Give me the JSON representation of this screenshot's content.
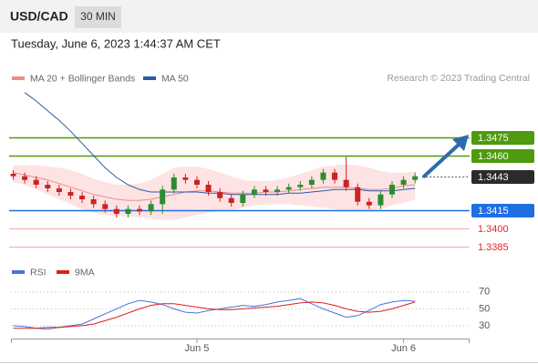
{
  "chart_data": {
    "type": "candlestick",
    "title": "USD/CAD",
    "timeframe": "30 MIN",
    "timestamp": "Tuesday, June 6, 2023 1:44:37 AM CET",
    "credit": "Research © 2023 Trading Central",
    "up_color": "#2e8b2e",
    "down_color": "#cc2222",
    "open": [
      1.3445,
      1.3443,
      1.344,
      1.3436,
      1.3433,
      1.343,
      1.3427,
      1.3424,
      1.342,
      1.3416,
      1.3412,
      1.3416,
      1.3414,
      1.342,
      1.3432,
      1.3442,
      1.344,
      1.3436,
      1.343,
      1.3425,
      1.3421,
      1.3428,
      1.3432,
      1.343,
      1.3432,
      1.3434,
      1.3436,
      1.344,
      1.3446,
      1.344,
      1.3434,
      1.3422,
      1.3419,
      1.3428,
      1.3436,
      1.344
    ],
    "high": [
      1.3448,
      1.3446,
      1.3443,
      1.3439,
      1.3436,
      1.3433,
      1.343,
      1.3427,
      1.3423,
      1.3419,
      1.3419,
      1.3419,
      1.3423,
      1.3435,
      1.3445,
      1.3445,
      1.3443,
      1.3439,
      1.3433,
      1.3428,
      1.3431,
      1.3435,
      1.3435,
      1.3435,
      1.3437,
      1.3439,
      1.3443,
      1.3449,
      1.3449,
      1.3459,
      1.3437,
      1.3425,
      1.3431,
      1.3439,
      1.3443,
      1.3446
    ],
    "low": [
      1.344,
      1.3437,
      1.3433,
      1.343,
      1.3427,
      1.3424,
      1.3421,
      1.3417,
      1.3413,
      1.3409,
      1.3409,
      1.3411,
      1.3411,
      1.3412,
      1.3429,
      1.3437,
      1.3433,
      1.3427,
      1.3422,
      1.3418,
      1.3418,
      1.3425,
      1.3427,
      1.3427,
      1.3429,
      1.3431,
      1.3433,
      1.3437,
      1.3437,
      1.3431,
      1.3419,
      1.3416,
      1.3416,
      1.3425,
      1.3433,
      1.3437
    ],
    "close": [
      1.3443,
      1.344,
      1.3436,
      1.3433,
      1.343,
      1.3427,
      1.3424,
      1.342,
      1.3416,
      1.3412,
      1.3416,
      1.3414,
      1.342,
      1.3432,
      1.3442,
      1.344,
      1.3436,
      1.343,
      1.3425,
      1.3421,
      1.3428,
      1.3432,
      1.343,
      1.3432,
      1.3434,
      1.3436,
      1.344,
      1.3446,
      1.344,
      1.3434,
      1.3422,
      1.3419,
      1.3428,
      1.3436,
      1.344,
      1.3443
    ],
    "overlays": [
      {
        "name": "MA 20 + Bollinger Bands",
        "color": "#f08a8a",
        "band_color": "#fde3e3",
        "values": [
          1.3446,
          1.3444,
          1.3442,
          1.344,
          1.3437,
          1.3434,
          1.3431,
          1.3428,
          1.3426,
          1.3424,
          1.3423,
          1.3423,
          1.3424,
          1.3426,
          1.3428,
          1.343,
          1.3431,
          1.3431,
          1.343,
          1.3429,
          1.3429,
          1.3429,
          1.343,
          1.343,
          1.3431,
          1.3432,
          1.3433,
          1.3434,
          1.3434,
          1.3434,
          1.3433,
          1.3432,
          1.3432,
          1.3433,
          1.3435,
          1.3436
        ],
        "upper": [
          1.3452,
          1.3452,
          1.3452,
          1.3451,
          1.345,
          1.3448,
          1.3445,
          1.3441,
          1.3438,
          1.3436,
          1.3436,
          1.3437,
          1.344,
          1.3445,
          1.345,
          1.3451,
          1.3451,
          1.3449,
          1.3446,
          1.3443,
          1.344,
          1.3439,
          1.3439,
          1.344,
          1.3442,
          1.3445,
          1.3448,
          1.3451,
          1.3452,
          1.3453,
          1.3452,
          1.345,
          1.3447,
          1.3446,
          1.3446,
          1.3447
        ],
        "lower": [
          1.3438,
          1.3436,
          1.3432,
          1.3428,
          1.3424,
          1.342,
          1.3416,
          1.3413,
          1.3411,
          1.341,
          1.341,
          1.3409,
          1.3408,
          1.3407,
          1.3407,
          1.3409,
          1.3411,
          1.3413,
          1.3414,
          1.3415,
          1.3417,
          1.3419,
          1.342,
          1.342,
          1.342,
          1.3419,
          1.3418,
          1.3417,
          1.3416,
          1.3415,
          1.3414,
          1.3414,
          1.3416,
          1.3419,
          1.3421,
          1.3424
        ]
      },
      {
        "name": "MA 50",
        "color": "#2d5aa8",
        "values": [
          null,
          1.3512,
          1.3505,
          1.3497,
          1.3489,
          1.348,
          1.347,
          1.346,
          1.345,
          1.3442,
          1.3436,
          1.3432,
          1.343,
          1.343,
          1.343,
          1.343,
          1.343,
          1.3429,
          1.3429,
          1.3428,
          1.3428,
          1.3428,
          1.3428,
          1.3428,
          1.3429,
          1.3429,
          1.343,
          1.3431,
          1.3432,
          1.3432,
          1.3432,
          1.3431,
          1.3431,
          1.3431,
          1.3432,
          1.3433
        ]
      }
    ],
    "levels": [
      {
        "value": 1.3475,
        "label": "1.3475",
        "color": "#4f9a0e",
        "style": "box"
      },
      {
        "value": 1.346,
        "label": "1.3460",
        "color": "#4f9a0e",
        "style": "box"
      },
      {
        "value": 1.3443,
        "label": "1.3443",
        "color": "#2b2b2b",
        "style": "current"
      },
      {
        "value": 1.3415,
        "label": "1.3415",
        "color": "#1f6fe0",
        "style": "box"
      },
      {
        "value": 1.34,
        "label": "1.3400",
        "color": "#e02828",
        "style": "text"
      },
      {
        "value": 1.3385,
        "label": "1.3385",
        "color": "#e02828",
        "style": "text"
      }
    ],
    "ylim": [
      1.33745,
      1.3517
    ],
    "xlim": [
      -0.2,
      39.75
    ],
    "xticks": [
      {
        "value": 16,
        "label": "Jun 5"
      },
      {
        "value": 34,
        "label": "Jun 6"
      }
    ],
    "indicator": {
      "series": [
        {
          "name": "RSI",
          "color": "#4a72d8",
          "values": [
            30,
            29,
            27,
            26,
            28,
            30,
            32,
            38,
            44,
            50,
            56,
            60,
            58,
            55,
            50,
            46,
            45,
            48,
            50,
            52,
            54,
            53,
            55,
            58,
            60,
            62,
            56,
            50,
            45,
            40,
            42,
            48,
            55,
            58,
            60,
            59
          ]
        },
        {
          "name": "9MA",
          "color": "#dd1f1f",
          "values": [
            27,
            27,
            27,
            28,
            28,
            29,
            30,
            32,
            36,
            40,
            45,
            50,
            54,
            56,
            56,
            54,
            52,
            50,
            49,
            49,
            50,
            51,
            52,
            53,
            55,
            57,
            58,
            57,
            54,
            50,
            47,
            46,
            47,
            50,
            54,
            58
          ]
        }
      ],
      "ylim": [
        17,
        87
      ],
      "yticks": [
        30,
        50,
        70
      ]
    }
  }
}
